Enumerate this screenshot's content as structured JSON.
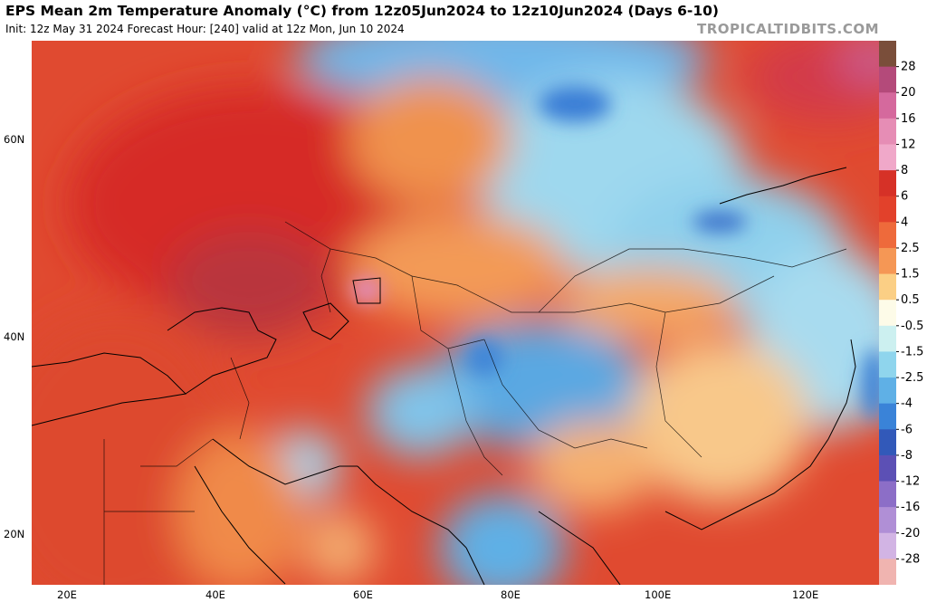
{
  "header": {
    "title": "EPS Mean 2m Temperature Anomaly (°C) from 12z05Jun2024 to 12z10Jun2024 (Days 6-10)",
    "subtitle": "Init: 12z May 31 2024   Forecast Hour: [240]   valid at 12z Mon, Jun 10 2024",
    "site": "TROPICALTIDBITS.COM"
  },
  "axes": {
    "lat_labels": [
      "60N",
      "40N",
      "20N"
    ],
    "lon_labels": [
      "20E",
      "40E",
      "60E",
      "80E",
      "100E",
      "120E"
    ]
  },
  "colorbar": {
    "levels": [
      "28",
      "20",
      "16",
      "12",
      "8",
      "6",
      "4",
      "2.5",
      "1.5",
      "0.5",
      "-0.5",
      "-1.5",
      "-2.5",
      "-4",
      "-6",
      "-8",
      "-12",
      "-16",
      "-20",
      "-28"
    ],
    "colors": [
      "#7a4e3a",
      "#b44a7a",
      "#d5699d",
      "#e68db5",
      "#f0a8c9",
      "#d63127",
      "#e2412b",
      "#ee6a3b",
      "#f59755",
      "#fbcf85",
      "#fdfbe8",
      "#ccf0f0",
      "#8fd5ed",
      "#5fb0e6",
      "#3a83d8",
      "#3259b9",
      "#5c50b5",
      "#8c6ec7",
      "#b08fd6",
      "#d2b4e4",
      "#f0b4b0"
    ]
  }
}
